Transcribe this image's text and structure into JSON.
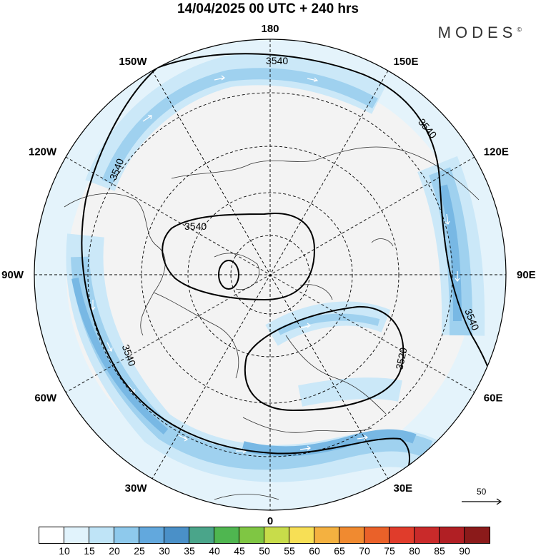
{
  "title": "14/04/2025  00 UTC  + 240 hrs",
  "brand": {
    "name": "MODES",
    "mark": "©"
  },
  "longitude_labels": [
    {
      "text": "180",
      "deg": 180
    },
    {
      "text": "150E",
      "deg": 150
    },
    {
      "text": "120E",
      "deg": 120
    },
    {
      "text": "90E",
      "deg": 90
    },
    {
      "text": "60E",
      "deg": 60
    },
    {
      "text": "30E",
      "deg": 30
    },
    {
      "text": "0",
      "deg": 0
    },
    {
      "text": "30W",
      "deg": -30
    },
    {
      "text": "60W",
      "deg": -60
    },
    {
      "text": "90W",
      "deg": -90
    },
    {
      "text": "120W",
      "deg": -120
    },
    {
      "text": "150W",
      "deg": -150
    }
  ],
  "contour_labels": [
    "3540",
    "3540",
    "3540",
    "3540",
    "3540",
    "3540",
    "3520"
  ],
  "reference_vector": {
    "value": "50"
  },
  "colorbar": {
    "ticks": [
      "10",
      "15",
      "20",
      "25",
      "30",
      "35",
      "40",
      "45",
      "50",
      "55",
      "60",
      "65",
      "70",
      "75",
      "80",
      "85",
      "90"
    ],
    "colors": [
      "#ffffff",
      "#e1f3fc",
      "#bfe4f7",
      "#8ec9ec",
      "#62a8dd",
      "#4a90c8",
      "#4aa58a",
      "#4fb650",
      "#7fc643",
      "#c8dc4a",
      "#f7df55",
      "#f4b140",
      "#f08a30",
      "#ea6129",
      "#e03c2b",
      "#c92a2a",
      "#b11f24",
      "#8b1a1a"
    ]
  }
}
